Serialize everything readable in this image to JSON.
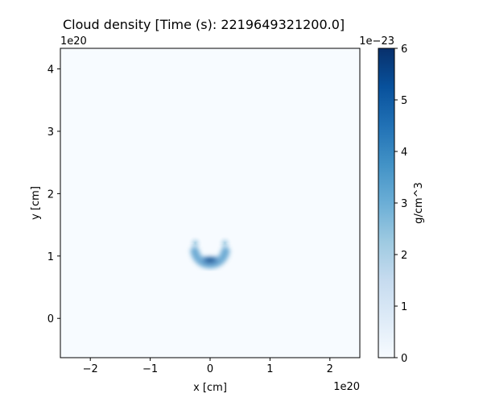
{
  "chart_data": {
    "type": "heatmap",
    "title": "Cloud density [Time (s): 2219649321200.0]",
    "xlabel": "x [cm]",
    "ylabel": "y [cm]",
    "x_offset_label": "1e20",
    "y_offset_label": "1e20",
    "xlim": [
      -2.5,
      2.5
    ],
    "ylim": [
      -0.63,
      4.33
    ],
    "xticks": [
      -2,
      -1,
      0,
      1,
      2
    ],
    "xtick_labels": [
      "−2",
      "−1",
      "0",
      "1",
      "2"
    ],
    "yticks": [
      0,
      1,
      2,
      3,
      4
    ],
    "ytick_labels": [
      "0",
      "1",
      "2",
      "3",
      "4"
    ],
    "colormap": "Blues",
    "colorbar": {
      "label": "g/cm^3",
      "offset_label": "1e−23",
      "range": [
        0,
        6
      ],
      "ticks": [
        0,
        1,
        2,
        3,
        4,
        5,
        6
      ],
      "tick_labels": [
        "0",
        "1",
        "2",
        "3",
        "4",
        "5",
        "6"
      ]
    },
    "features": [
      {
        "shape": "crescent-arc",
        "center": [
          0.0,
          1.12
        ],
        "radius": 0.26,
        "peak_value": 6,
        "note_hidden": true
      }
    ],
    "grid": false
  }
}
